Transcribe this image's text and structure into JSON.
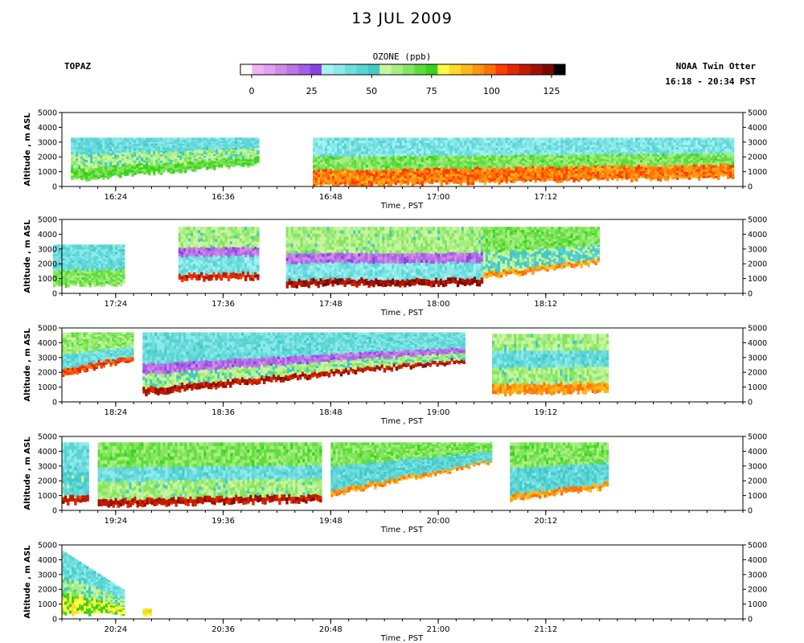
{
  "title": "13 JUL 2009",
  "instrument": "TOPAZ",
  "platform": "NOAA Twin Otter",
  "time_range": "16:18 - 20:34 PST",
  "colorbar": {
    "title": "OZONE (ppb)",
    "min": 0,
    "max": 130,
    "tick_values": [
      0,
      25,
      50,
      75,
      100,
      125
    ],
    "tick_labels": [
      "0",
      "25",
      "50",
      "75",
      "100",
      "125"
    ],
    "colors": [
      "#ffffff",
      "#f2b3f2",
      "#e3a0ee",
      "#d28ae9",
      "#bb73e5",
      "#a45ee6",
      "#8844e0",
      "#a5f3f3",
      "#8deaea",
      "#70dede",
      "#5ad3d3",
      "#43c8c8",
      "#c8f5a0",
      "#a7ee82",
      "#85e561",
      "#5fdc3c",
      "#39d21e",
      "#ffff40",
      "#ffdc28",
      "#ffb81a",
      "#ff9410",
      "#ff7008",
      "#ff3c00",
      "#e12800",
      "#c31a00",
      "#a01000",
      "#7a0a00",
      "#000000"
    ]
  },
  "chart_data": [
    {
      "type": "heatmap",
      "panel": 1,
      "xlabel": "Time , PST",
      "ylabel": "Altitude , m ASL",
      "ylim": [
        0,
        5000
      ],
      "y_ticks": [
        "0",
        "1000",
        "2000",
        "3000",
        "4000",
        "5000"
      ],
      "x_tick_labels": [
        "16:24",
        "16:36",
        "16:48",
        "17:00",
        "17:12"
      ],
      "segments": [
        {
          "t0": "16:19",
          "t1": "16:40",
          "floor_m": [
            400,
            1500
          ],
          "top_m": 3300,
          "layers": [
            [
              0,
              30,
              72
            ],
            [
              30,
              60,
              60
            ],
            [
              60,
              100,
              45
            ]
          ]
        },
        {
          "t0": "16:46",
          "t1": "17:33",
          "floor_m": [
            0,
            600
          ],
          "top_m": 3300,
          "layers": [
            [
              0,
              35,
              98
            ],
            [
              35,
              60,
              68
            ],
            [
              60,
              100,
              42
            ]
          ]
        }
      ]
    },
    {
      "type": "heatmap",
      "panel": 2,
      "xlabel": "Time , PST",
      "ylabel": "Altitude , m ASL",
      "ylim": [
        0,
        5000
      ],
      "y_ticks": [
        "0",
        "1000",
        "2000",
        "3000",
        "4000",
        "5000"
      ],
      "x_tick_labels": [
        "17:24",
        "17:36",
        "17:48",
        "18:00",
        "18:12"
      ],
      "segments": [
        {
          "t0": "17:17",
          "t1": "17:25",
          "floor_m": [
            500,
            600
          ],
          "top_m": 3300,
          "layers": [
            [
              0,
              40,
              68
            ],
            [
              40,
              100,
              45
            ]
          ]
        },
        {
          "t0": "17:31",
          "t1": "17:40",
          "floor_m": [
            900,
            1000
          ],
          "top_m": 4500,
          "layers": [
            [
              0,
              10,
              110
            ],
            [
              10,
              45,
              42
            ],
            [
              45,
              60,
              22
            ],
            [
              60,
              100,
              62
            ]
          ]
        },
        {
          "t0": "17:43",
          "t1": "18:05",
          "floor_m": [
            500,
            600
          ],
          "top_m": 4500,
          "layers": [
            [
              0,
              10,
              118
            ],
            [
              10,
              40,
              42
            ],
            [
              40,
              55,
              22
            ],
            [
              55,
              100,
              62
            ]
          ]
        },
        {
          "t0": "18:05",
          "t1": "18:18",
          "floor_m": [
            1000,
            2000
          ],
          "top_m": 4500,
          "layers": [
            [
              0,
              10,
              95
            ],
            [
              10,
              50,
              55
            ],
            [
              50,
              100,
              68
            ]
          ]
        }
      ]
    },
    {
      "type": "heatmap",
      "panel": 3,
      "xlabel": "Time , PST",
      "ylabel": "Altitude , m ASL",
      "ylim": [
        0,
        5000
      ],
      "y_ticks": [
        "0",
        "1000",
        "2000",
        "3000",
        "4000",
        "5000"
      ],
      "x_tick_labels": [
        "18:24",
        "18:36",
        "18:48",
        "19:00",
        "19:12"
      ],
      "segments": [
        {
          "t0": "18:18",
          "t1": "18:26",
          "floor_m": [
            1800,
            2800
          ],
          "top_m": 4700,
          "layers": [
            [
              0,
              15,
              105
            ],
            [
              15,
              50,
              45
            ],
            [
              50,
              100,
              65
            ]
          ]
        },
        {
          "t0": "18:27",
          "t1": "19:03",
          "floor_m": [
            500,
            2700
          ],
          "top_m": 4700,
          "layers": [
            [
              0,
              10,
              115
            ],
            [
              10,
              35,
              60
            ],
            [
              35,
              50,
              22
            ],
            [
              50,
              100,
              45
            ]
          ]
        },
        {
          "t0": "19:06",
          "t1": "19:19",
          "floor_m": [
            500,
            700
          ],
          "top_m": 4600,
          "layers": [
            [
              0,
              15,
              95
            ],
            [
              15,
              45,
              62
            ],
            [
              45,
              70,
              45
            ],
            [
              70,
              100,
              62
            ]
          ]
        }
      ]
    },
    {
      "type": "heatmap",
      "panel": 4,
      "xlabel": "Time , PST",
      "ylabel": "Altitude , m ASL",
      "ylim": [
        0,
        5000
      ],
      "y_ticks": [
        "0",
        "1000",
        "2000",
        "3000",
        "4000",
        "5000"
      ],
      "x_tick_labels": [
        "19:24",
        "19:36",
        "19:48",
        "20:00",
        "20:12"
      ],
      "segments": [
        {
          "t0": "19:18",
          "t1": "19:21",
          "floor_m": [
            500,
            500
          ],
          "top_m": 4600,
          "layers": [
            [
              0,
              10,
              110
            ],
            [
              10,
              50,
              50
            ],
            [
              50,
              100,
              45
            ]
          ]
        },
        {
          "t0": "19:22",
          "t1": "19:47",
          "floor_m": [
            300,
            600
          ],
          "top_m": 4600,
          "layers": [
            [
              0,
              12,
              115
            ],
            [
              12,
              40,
              62
            ],
            [
              40,
              60,
              45
            ],
            [
              60,
              100,
              68
            ]
          ]
        },
        {
          "t0": "19:48",
          "t1": "20:06",
          "floor_m": [
            1000,
            3200
          ],
          "top_m": 4600,
          "layers": [
            [
              0,
              10,
              95
            ],
            [
              10,
              55,
              48
            ],
            [
              55,
              100,
              68
            ]
          ]
        },
        {
          "t0": "20:08",
          "t1": "20:19",
          "floor_m": [
            700,
            1500
          ],
          "top_m": 4600,
          "layers": [
            [
              0,
              10,
              95
            ],
            [
              10,
              55,
              48
            ],
            [
              55,
              100,
              68
            ]
          ]
        }
      ]
    },
    {
      "type": "heatmap",
      "panel": 5,
      "xlabel": "Time , PST",
      "ylabel": "Altitude , m ASL",
      "ylim": [
        0,
        5000
      ],
      "y_ticks": [
        "0",
        "1000",
        "2000",
        "3000",
        "4000",
        "5000"
      ],
      "x_tick_labels": [
        "20:24",
        "20:36",
        "20:48",
        "21:00",
        "21:12"
      ],
      "segments": [
        {
          "t0": "20:18",
          "t1": "20:25",
          "floor_m": [
            300,
            300
          ],
          "top_m": [
            4600,
            2000
          ],
          "layers": [
            [
              0,
              35,
              80
            ],
            [
              35,
              60,
              60
            ],
            [
              60,
              100,
              45
            ]
          ]
        },
        {
          "t0": "20:27",
          "t1": "20:28",
          "floor_m": [
            300,
            300
          ],
          "top_m": 700,
          "layers": [
            [
              0,
              100,
              85
            ]
          ]
        }
      ]
    }
  ]
}
